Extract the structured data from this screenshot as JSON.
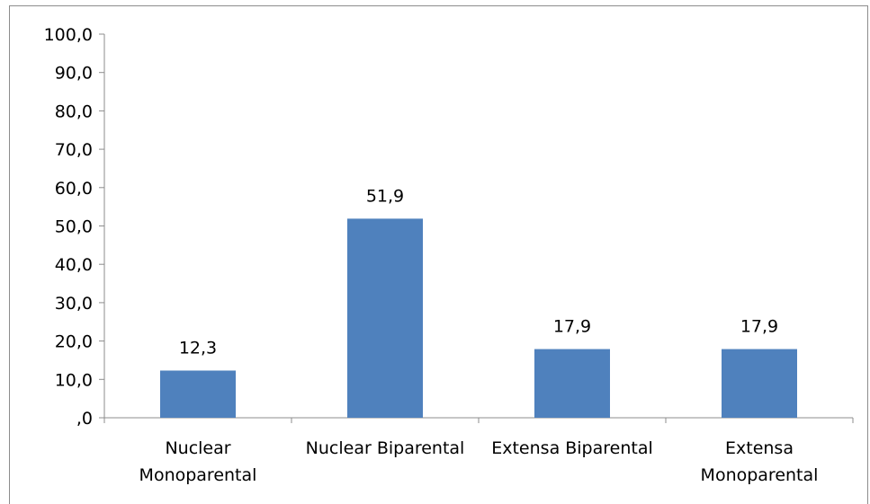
{
  "chart_data": {
    "type": "bar",
    "categories": [
      [
        "Nuclear",
        "Monoparental"
      ],
      [
        "Nuclear Biparental"
      ],
      [
        "Extensa Biparental"
      ],
      [
        "Extensa",
        "Monoparental"
      ]
    ],
    "values": [
      12.3,
      51.9,
      17.9,
      17.9
    ],
    "value_labels": [
      "12,3",
      "51,9",
      "17,9",
      "17,9"
    ],
    "y_ticks": [
      {
        "value": 0,
        "label": ",0"
      },
      {
        "value": 10,
        "label": "10,0"
      },
      {
        "value": 20,
        "label": "20,0"
      },
      {
        "value": 30,
        "label": "30,0"
      },
      {
        "value": 40,
        "label": "40,0"
      },
      {
        "value": 50,
        "label": "50,0"
      },
      {
        "value": 60,
        "label": "60,0"
      },
      {
        "value": 70,
        "label": "70,0"
      },
      {
        "value": 80,
        "label": "80,0"
      },
      {
        "value": 90,
        "label": "90,0"
      },
      {
        "value": 100,
        "label": "100,0"
      }
    ],
    "ylim": [
      0,
      100
    ],
    "grid": false,
    "legend": "none",
    "bar_color": "#4f81bd",
    "axis_color": "#8c8c8c"
  }
}
